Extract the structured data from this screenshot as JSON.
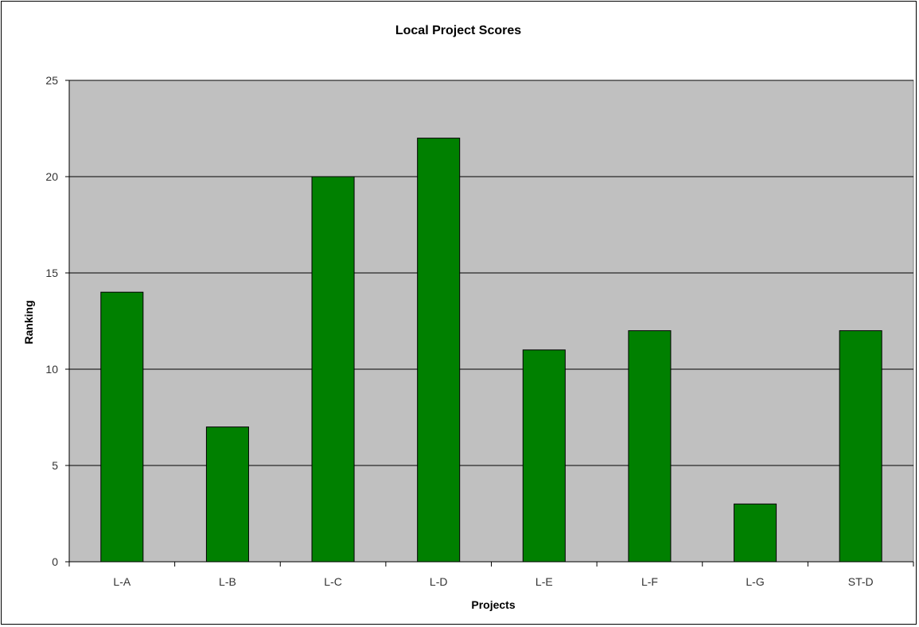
{
  "chart_data": {
    "type": "bar",
    "title": "Local Project Scores",
    "xlabel": "Projects",
    "ylabel": "Ranking",
    "categories": [
      "L-A",
      "L-B",
      "L-C",
      "L-D",
      "L-E",
      "L-F",
      "L-G",
      "ST-D"
    ],
    "values": [
      14,
      7,
      20,
      22,
      11,
      12,
      3,
      12
    ],
    "ylim": [
      0,
      25
    ],
    "yticks": [
      "0",
      "5",
      "10",
      "15",
      "20",
      "25"
    ],
    "grid": true,
    "legend": "none",
    "colors": {
      "bar": "#008000",
      "plot_background": "#c0c0c0",
      "gridline": "#000000"
    }
  }
}
